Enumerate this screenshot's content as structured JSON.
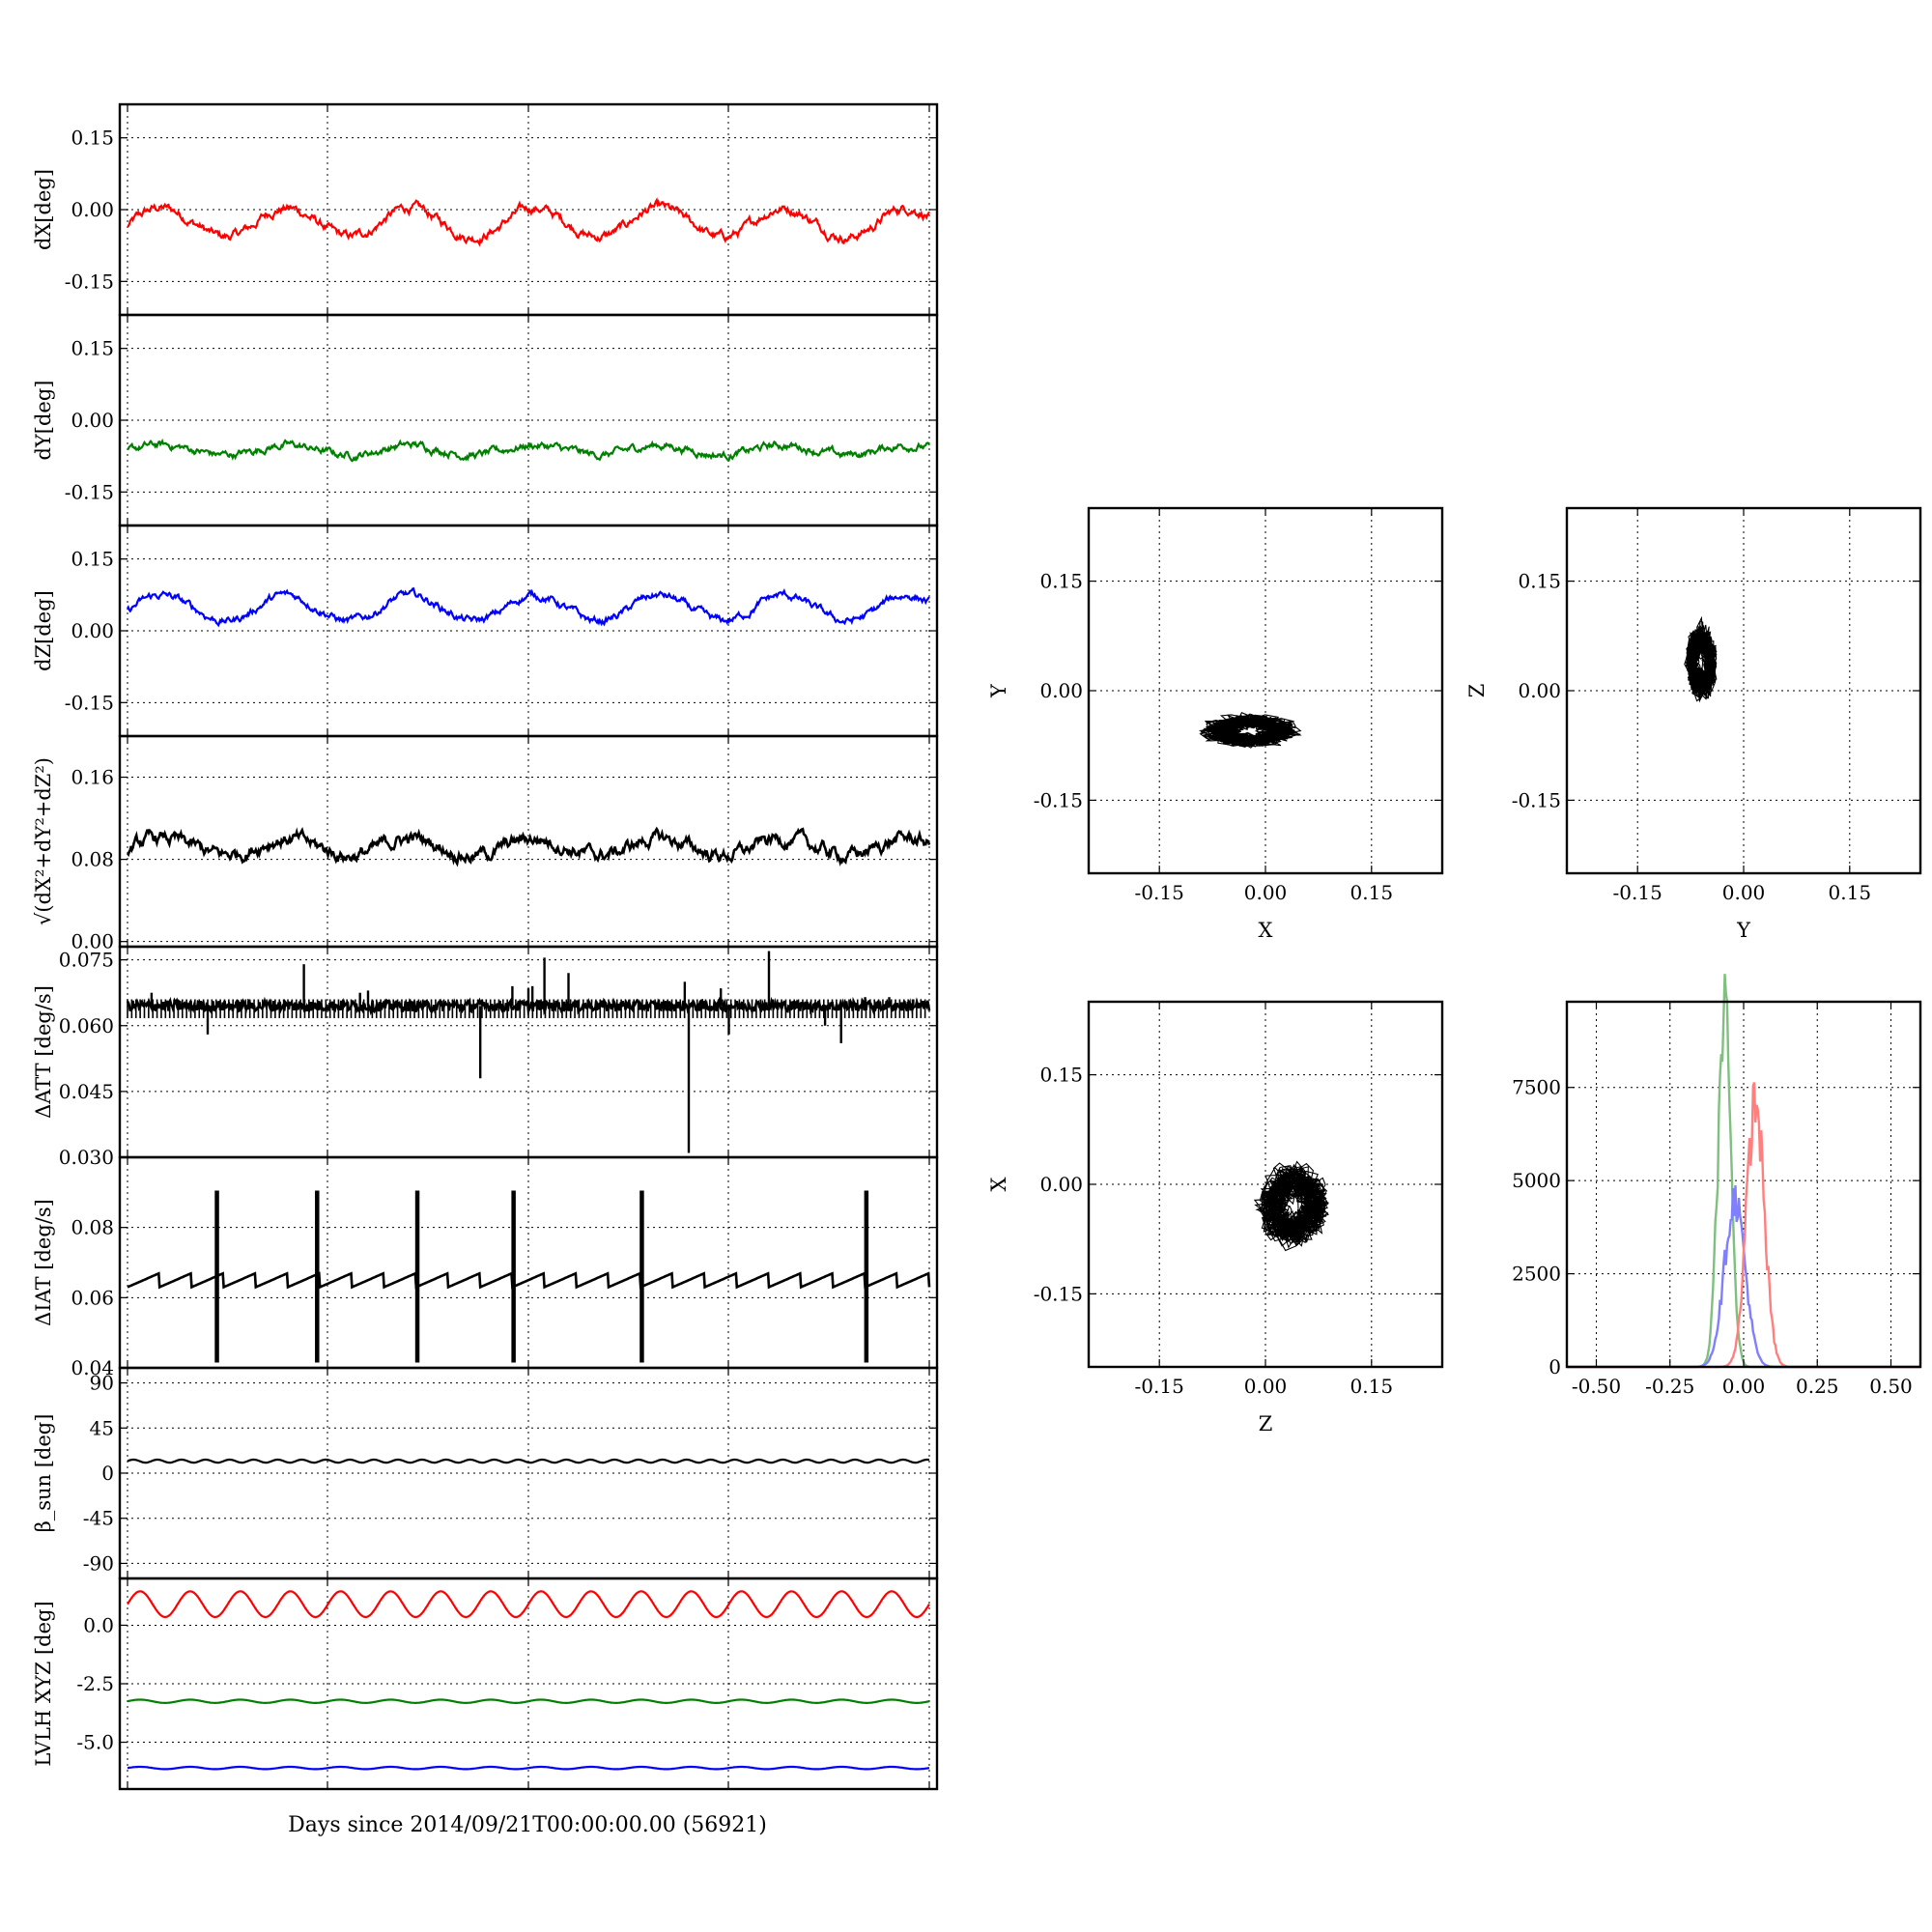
{
  "figure": {
    "x_caption": "Days since 2014/09/21T00:00:00.00 (56921)",
    "grid": true,
    "line_color_black": "#000000"
  },
  "chart_data": [
    {
      "id": "dx",
      "type": "line",
      "ylabel": "dX[deg]",
      "ylim": [
        -0.22,
        0.22
      ],
      "yticks": [
        "0.15",
        "0.00",
        "-0.15"
      ],
      "ytick_values": [
        0.15,
        0.0,
        -0.15
      ],
      "series": [
        {
          "color": "#ff0000",
          "base": -0.035,
          "amp": 0.045,
          "period": 0.155,
          "noise": 0.012
        }
      ]
    },
    {
      "id": "dy",
      "type": "line",
      "ylabel": "dY[deg]",
      "ylim": [
        -0.22,
        0.22
      ],
      "yticks": [
        "0.15",
        "0.00",
        "-0.15"
      ],
      "ytick_values": [
        0.15,
        0.0,
        -0.15
      ],
      "series": [
        {
          "color": "#008000",
          "base": -0.065,
          "amp": 0.015,
          "period": 0.155,
          "noise": 0.01
        }
      ]
    },
    {
      "id": "dz",
      "type": "line",
      "ylabel": "dZ[deg]",
      "ylim": [
        -0.22,
        0.22
      ],
      "yticks": [
        "0.15",
        "0.00",
        "-0.15"
      ],
      "ytick_values": [
        0.15,
        0.0,
        -0.15
      ],
      "series": [
        {
          "color": "#0000ff",
          "base": 0.04,
          "amp": 0.04,
          "period": 0.155,
          "noise": 0.01
        }
      ]
    },
    {
      "id": "dtot",
      "type": "line",
      "ylabel": "√(dX²+dY²+dZ²)",
      "ylim": [
        -0.005,
        0.2
      ],
      "yticks": [
        "0.16",
        "0.08",
        "0.00"
      ],
      "ytick_values": [
        0.16,
        0.08,
        0.0
      ],
      "series": [
        {
          "color": "#000000",
          "base": 0.09,
          "amp": 0.012,
          "period": 0.155,
          "noise": 0.008
        }
      ]
    },
    {
      "id": "datt",
      "type": "line",
      "ylabel": "ΔATT [deg/s]",
      "ylim": [
        0.03,
        0.078
      ],
      "yticks": [
        "0.075",
        "0.060",
        "0.045",
        "0.030"
      ],
      "ytick_values": [
        0.075,
        0.06,
        0.045,
        0.03
      ],
      "series": [
        {
          "color": "#000000",
          "base": 0.0645,
          "spikes": [
            [
              0.03,
              0.0675
            ],
            [
              0.1,
              0.058
            ],
            [
              0.22,
              0.074
            ],
            [
              0.29,
              0.0675
            ],
            [
              0.3,
              0.068
            ],
            [
              0.44,
              0.048
            ],
            [
              0.48,
              0.069
            ],
            [
              0.5,
              0.0685
            ],
            [
              0.505,
              0.069
            ],
            [
              0.52,
              0.0755
            ],
            [
              0.55,
              0.072
            ],
            [
              0.7,
              0.031
            ],
            [
              0.695,
              0.07
            ],
            [
              0.74,
              0.0685
            ],
            [
              0.75,
              0.058
            ],
            [
              0.8,
              0.077
            ],
            [
              0.87,
              0.06
            ],
            [
              0.89,
              0.056
            ],
            [
              0.92,
              0.0665
            ],
            [
              0.95,
              0.0665
            ],
            [
              0.98,
              0.066
            ]
          ]
        }
      ]
    },
    {
      "id": "diat",
      "type": "line",
      "ylabel": "ΔIAT [deg/s]",
      "ylim": [
        0.04,
        0.1
      ],
      "yticks": [
        "0.08",
        "0.06",
        "0.04"
      ],
      "ytick_values": [
        0.08,
        0.06,
        0.04
      ],
      "series": [
        {
          "color": "#000000",
          "base": 0.063,
          "sawtooth": 0.04,
          "bursts": [
            0.11,
            0.235,
            0.36,
            0.48,
            0.64,
            0.92
          ]
        }
      ]
    },
    {
      "id": "beta",
      "type": "line",
      "ylabel": "β_sun [deg]",
      "ylim": [
        -105,
        105
      ],
      "yticks": [
        "90",
        "45",
        "0",
        "-45",
        "-90"
      ],
      "ytick_values": [
        90,
        45,
        0,
        -45,
        -90
      ],
      "series": [
        {
          "color": "#000000",
          "base": 12,
          "amp": 1.5,
          "period": 0.03
        }
      ]
    },
    {
      "id": "lvlh",
      "type": "line",
      "ylabel": "LVLH XYZ [deg]",
      "ylim": [
        -7.0,
        2.0
      ],
      "yticks": [
        "0.0",
        "-2.5",
        "-5.0"
      ],
      "ytick_values": [
        0.0,
        -2.5,
        -5.0
      ],
      "series": [
        {
          "color": "#ff0000",
          "base": 0.9,
          "amp": 0.55,
          "period": 0.0625
        },
        {
          "color": "#008000",
          "base": -3.25,
          "amp": 0.07,
          "period": 0.0625
        },
        {
          "color": "#0000ff",
          "base": -6.1,
          "amp": 0.05,
          "period": 0.0625
        }
      ]
    },
    {
      "id": "xy",
      "type": "scatter",
      "xlabel": "X",
      "ylabel": "Y",
      "xlim": [
        -0.25,
        0.25
      ],
      "ylim": [
        -0.25,
        0.25
      ],
      "xticks": [
        "-0.15",
        "0.00",
        "0.15"
      ],
      "yticks": [
        "0.15",
        "0.00",
        "-0.15"
      ],
      "tick_values": [
        -0.15,
        0.0,
        0.15
      ],
      "series": [
        {
          "color": "#000000",
          "cx": -0.02,
          "cy": -0.055,
          "rx": 0.06,
          "ry": 0.02
        }
      ]
    },
    {
      "id": "yz",
      "type": "scatter",
      "xlabel": "Y",
      "ylabel": "Z",
      "xlim": [
        -0.25,
        0.25
      ],
      "ylim": [
        -0.25,
        0.25
      ],
      "xticks": [
        "-0.15",
        "0.00",
        "0.15"
      ],
      "yticks": [
        "0.15",
        "0.00",
        "-0.15"
      ],
      "tick_values": [
        -0.15,
        0.0,
        0.15
      ],
      "series": [
        {
          "color": "#000000",
          "cx": -0.06,
          "cy": 0.04,
          "rx": 0.02,
          "ry": 0.045
        }
      ]
    },
    {
      "id": "zx",
      "type": "scatter",
      "xlabel": "Z",
      "ylabel": "X",
      "xlim": [
        -0.25,
        0.25
      ],
      "ylim": [
        -0.25,
        0.25
      ],
      "xticks": [
        "-0.15",
        "0.00",
        "0.15"
      ],
      "yticks": [
        "0.15",
        "0.00",
        "-0.15"
      ],
      "tick_values": [
        -0.15,
        0.0,
        0.15
      ],
      "series": [
        {
          "color": "#000000",
          "cx": 0.04,
          "cy": -0.03,
          "rx": 0.045,
          "ry": 0.05
        }
      ]
    },
    {
      "id": "hist",
      "type": "line",
      "xlim": [
        -0.6,
        0.6
      ],
      "ylim": [
        0,
        9800
      ],
      "xticks": [
        "-0.50",
        "-0.25",
        "0.00",
        "0.25",
        "0.50"
      ],
      "xtick_values": [
        -0.5,
        -0.25,
        0.0,
        0.25,
        0.5
      ],
      "yticks": [
        "7500",
        "5000",
        "2500",
        "0"
      ],
      "ytick_values": [
        7500,
        5000,
        2500,
        0
      ],
      "series": [
        {
          "color": "#7fbf7f",
          "center": -0.065,
          "sigma": 0.022,
          "peak": 9500
        },
        {
          "color": "#7f7fff",
          "center": -0.03,
          "sigma": 0.035,
          "peak": 4500
        },
        {
          "color": "#ff7f7f",
          "center": 0.04,
          "sigma": 0.03,
          "peak": 7100
        }
      ]
    }
  ]
}
